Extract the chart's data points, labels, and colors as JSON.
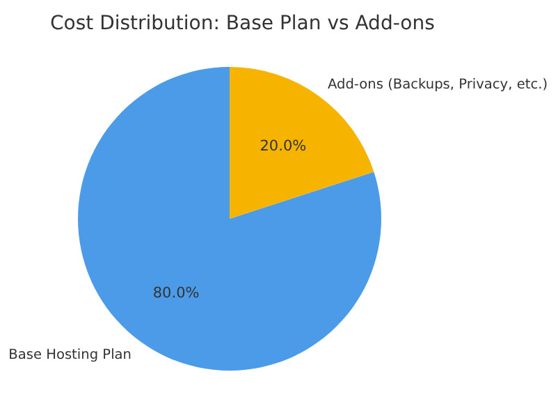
{
  "chart_data": {
    "type": "pie",
    "title": "Cost Distribution: Base Plan vs Add-ons",
    "categories": [
      "Base Hosting Plan",
      "Add-ons (Backups, Privacy, etc.)"
    ],
    "values": [
      80,
      20
    ],
    "colors": [
      "#4c9be8",
      "#f6b400"
    ],
    "value_labels": [
      "80.0%",
      "20.0%"
    ],
    "legend": false
  }
}
